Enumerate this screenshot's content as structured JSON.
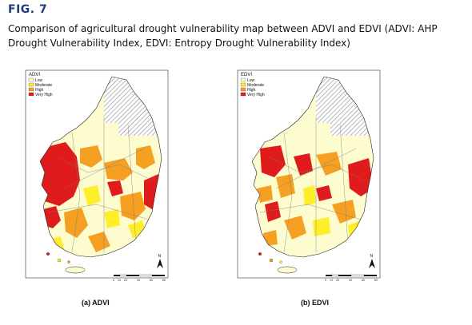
{
  "figure": {
    "label": "FIG. 7",
    "caption": "Comparison of agricultural drought vulnerability map between ADVI and EDVI (ADVI: AHP Drought Vulnerability Index, EDVI: Entropy Drought Vulnerability Index)"
  },
  "legend_classes": [
    {
      "label": "Low",
      "color": "#fdfccf"
    },
    {
      "label": "Moderate",
      "color": "#ffee2a"
    },
    {
      "label": "High",
      "color": "#f5a023"
    },
    {
      "label": "Very High",
      "color": "#e01b1b"
    }
  ],
  "hatch_meaning_color": "#9a9a9a",
  "maps": [
    {
      "id": "a",
      "legend_title": "ADVI",
      "panel_label": "(a) ADVI",
      "north_label": "N"
    },
    {
      "id": "b",
      "legend_title": "EDVI",
      "panel_label": "(b) EDVI",
      "north_label": "N"
    }
  ],
  "scale_bar": {
    "ticks": [
      "0",
      "10",
      "20",
      "40",
      "60",
      "80"
    ],
    "unit": "Km"
  }
}
